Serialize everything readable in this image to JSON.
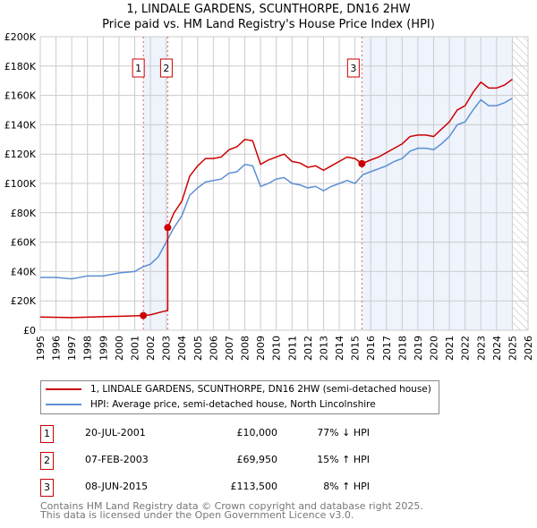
{
  "title": "1, LINDALE GARDENS, SCUNTHORPE, DN16 2HW",
  "subtitle": "Price paid vs. HM Land Registry's House Price Index (HPI)",
  "colors": {
    "red": "#cc0000",
    "blue": "#5b8fd4",
    "shade": "#eef3fc"
  },
  "chart_data": {
    "type": "line",
    "xlim": [
      1995,
      2026
    ],
    "ylim": [
      0,
      200000
    ],
    "x_ticks": [
      "1995",
      "1996",
      "1997",
      "1998",
      "1999",
      "2000",
      "2001",
      "2002",
      "2003",
      "2004",
      "2005",
      "2006",
      "2007",
      "2008",
      "2009",
      "2010",
      "2011",
      "2012",
      "2013",
      "2014",
      "2015",
      "2016",
      "2017",
      "2018",
      "2019",
      "2020",
      "2021",
      "2022",
      "2023",
      "2024",
      "2025",
      "2026"
    ],
    "y_ticks": [
      "£0",
      "£20K",
      "£40K",
      "£60K",
      "£80K",
      "£100K",
      "£120K",
      "£140K",
      "£160K",
      "£180K",
      "£200K"
    ],
    "data_end": 2025.0,
    "series": [
      {
        "name": "1, LINDALE GARDENS, SCUNTHORPE, DN16 2HW (semi-detached house)",
        "color": "#cc0000",
        "points": [
          [
            1995,
            9000
          ],
          [
            1997,
            8600
          ],
          [
            1999,
            9200
          ],
          [
            2001.55,
            10000
          ],
          [
            2002,
            10500
          ],
          [
            2002.9,
            13000
          ],
          [
            2003.1,
            13500
          ],
          [
            2003.1,
            69950
          ],
          [
            2003.5,
            80000
          ],
          [
            2004,
            88000
          ],
          [
            2004.5,
            105000
          ],
          [
            2005,
            112000
          ],
          [
            2005.5,
            117000
          ],
          [
            2006,
            117000
          ],
          [
            2006.5,
            118000
          ],
          [
            2007,
            123000
          ],
          [
            2007.5,
            125000
          ],
          [
            2008,
            130000
          ],
          [
            2008.5,
            129000
          ],
          [
            2009,
            113000
          ],
          [
            2009.5,
            116000
          ],
          [
            2010,
            118000
          ],
          [
            2010.5,
            120000
          ],
          [
            2011,
            115000
          ],
          [
            2011.5,
            114000
          ],
          [
            2012,
            111000
          ],
          [
            2012.5,
            112000
          ],
          [
            2013,
            109000
          ],
          [
            2013.5,
            112000
          ],
          [
            2014,
            115000
          ],
          [
            2014.5,
            118000
          ],
          [
            2015,
            117000
          ],
          [
            2015.44,
            113500
          ],
          [
            2016,
            116000
          ],
          [
            2016.5,
            118000
          ],
          [
            2017,
            121000
          ],
          [
            2017.5,
            124000
          ],
          [
            2018,
            127000
          ],
          [
            2018.5,
            132000
          ],
          [
            2019,
            133000
          ],
          [
            2019.5,
            133000
          ],
          [
            2020,
            132000
          ],
          [
            2020.5,
            137000
          ],
          [
            2021,
            142000
          ],
          [
            2021.5,
            150000
          ],
          [
            2022,
            153000
          ],
          [
            2022.5,
            162000
          ],
          [
            2023,
            169000
          ],
          [
            2023.5,
            165000
          ],
          [
            2024,
            165000
          ],
          [
            2024.5,
            167000
          ],
          [
            2025,
            171000
          ]
        ]
      },
      {
        "name": "HPI: Average price, semi-detached house, North Lincolnshire",
        "color": "#5b8fd4",
        "points": [
          [
            1995,
            36000
          ],
          [
            1996,
            36000
          ],
          [
            1997,
            35000
          ],
          [
            1998,
            37000
          ],
          [
            1999,
            37000
          ],
          [
            2000,
            39000
          ],
          [
            2001,
            40000
          ],
          [
            2001.5,
            43000
          ],
          [
            2002,
            45000
          ],
          [
            2002.5,
            50000
          ],
          [
            2003,
            60000
          ],
          [
            2003.5,
            70000
          ],
          [
            2004,
            78000
          ],
          [
            2004.5,
            92000
          ],
          [
            2005,
            97000
          ],
          [
            2005.5,
            101000
          ],
          [
            2006,
            102000
          ],
          [
            2006.5,
            103000
          ],
          [
            2007,
            107000
          ],
          [
            2007.5,
            108000
          ],
          [
            2008,
            113000
          ],
          [
            2008.5,
            112000
          ],
          [
            2009,
            98000
          ],
          [
            2009.5,
            100000
          ],
          [
            2010,
            103000
          ],
          [
            2010.5,
            104000
          ],
          [
            2011,
            100000
          ],
          [
            2011.5,
            99000
          ],
          [
            2012,
            97000
          ],
          [
            2012.5,
            98000
          ],
          [
            2013,
            95000
          ],
          [
            2013.5,
            98000
          ],
          [
            2014,
            100000
          ],
          [
            2014.5,
            102000
          ],
          [
            2015,
            100000
          ],
          [
            2015.5,
            106000
          ],
          [
            2016,
            108000
          ],
          [
            2016.5,
            110000
          ],
          [
            2017,
            112000
          ],
          [
            2017.5,
            115000
          ],
          [
            2018,
            117000
          ],
          [
            2018.5,
            122000
          ],
          [
            2019,
            124000
          ],
          [
            2019.5,
            124000
          ],
          [
            2020,
            123000
          ],
          [
            2020.5,
            127000
          ],
          [
            2021,
            132000
          ],
          [
            2021.5,
            140000
          ],
          [
            2022,
            142000
          ],
          [
            2022.5,
            150000
          ],
          [
            2023,
            157000
          ],
          [
            2023.5,
            153000
          ],
          [
            2024,
            153000
          ],
          [
            2024.5,
            155000
          ],
          [
            2025,
            158000
          ]
        ]
      }
    ],
    "sales": [
      {
        "label": "1",
        "x": 2001.55,
        "y": 10000
      },
      {
        "label": "2",
        "x": 2003.1,
        "y": 69950
      },
      {
        "label": "3",
        "x": 2015.44,
        "y": 113500
      }
    ],
    "shaded": [
      [
        2001.55,
        2003.1
      ],
      [
        2015.44,
        2025.0
      ]
    ]
  },
  "transactions": [
    {
      "num": "1",
      "date": "20-JUL-2001",
      "price": "£10,000",
      "hpi": "77% ↓ HPI"
    },
    {
      "num": "2",
      "date": "07-FEB-2003",
      "price": "£69,950",
      "hpi": "15% ↑ HPI"
    },
    {
      "num": "3",
      "date": "08-JUN-2015",
      "price": "£113,500",
      "hpi": "8% ↑ HPI"
    }
  ],
  "footer": [
    "Contains HM Land Registry data © Crown copyright and database right 2025.",
    "This data is licensed under the Open Government Licence v3.0."
  ]
}
